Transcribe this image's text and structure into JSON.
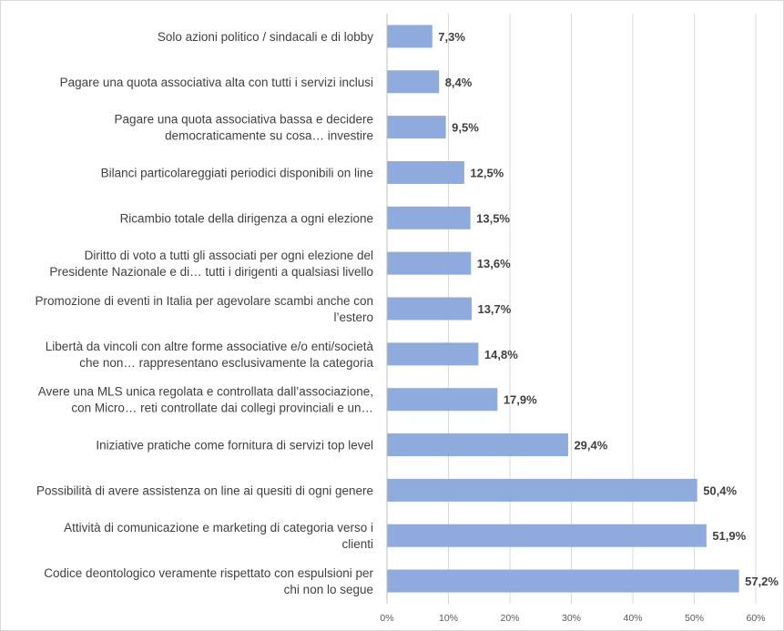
{
  "chart_data": {
    "type": "bar",
    "orientation": "horizontal",
    "title": "",
    "xlabel": "",
    "ylabel": "",
    "xlim": [
      0,
      60
    ],
    "grid": true,
    "legend": "none",
    "ticks": [
      "0%",
      "10%",
      "20%",
      "30%",
      "40%",
      "50%",
      "60%"
    ],
    "tick_values": [
      0,
      10,
      20,
      30,
      40,
      50,
      60
    ],
    "bar_color": "#8faadc",
    "categories": [
      [
        "Solo azioni politico / sindacali e di lobby"
      ],
      [
        "Pagare una quota associativa alta con tutti i servizi inclusi"
      ],
      [
        "Pagare una quota associativa bassa e decidere",
        "democraticamente su cosa… investire"
      ],
      [
        "Bilanci particolareggiati periodici disponibili on line"
      ],
      [
        "Ricambio totale della dirigenza a ogni elezione"
      ],
      [
        "Diritto di voto a tutti gli associati per ogni elezione del",
        "Presidente Nazionale e di… tutti i dirigenti a qualsiasi livello"
      ],
      [
        "Promozione  di eventi in Italia per agevolare scambi anche con",
        "l’estero"
      ],
      [
        "Libertà da vincoli con altre forme associative e/o enti/società",
        "che non… rappresentano esclusivamente la categoria"
      ],
      [
        "Avere una MLS unica regolata e controllata dall’associazione,",
        "con Micro… reti controllate dai collegi provinciali e un…"
      ],
      [
        "Iniziative pratiche come fornitura di servizi top level"
      ],
      [
        "Possibilità di avere assistenza on line ai quesiti di ogni genere"
      ],
      [
        "Attività di comunicazione e marketing di categoria verso i",
        "clienti"
      ],
      [
        "Codice deontologico veramente rispettato con espulsioni per",
        "chi non lo segue"
      ]
    ],
    "values": [
      7.3,
      8.4,
      9.5,
      12.5,
      13.5,
      13.6,
      13.7,
      14.8,
      17.9,
      29.4,
      50.4,
      51.9,
      57.2
    ],
    "value_labels": [
      "7,3%",
      "8,4%",
      "9,5%",
      "12,5%",
      "13,5%",
      "13,6%",
      "13,7%",
      "14,8%",
      "17,9%",
      "29,4%",
      "50,4%",
      "51,9%",
      "57,2%"
    ]
  }
}
